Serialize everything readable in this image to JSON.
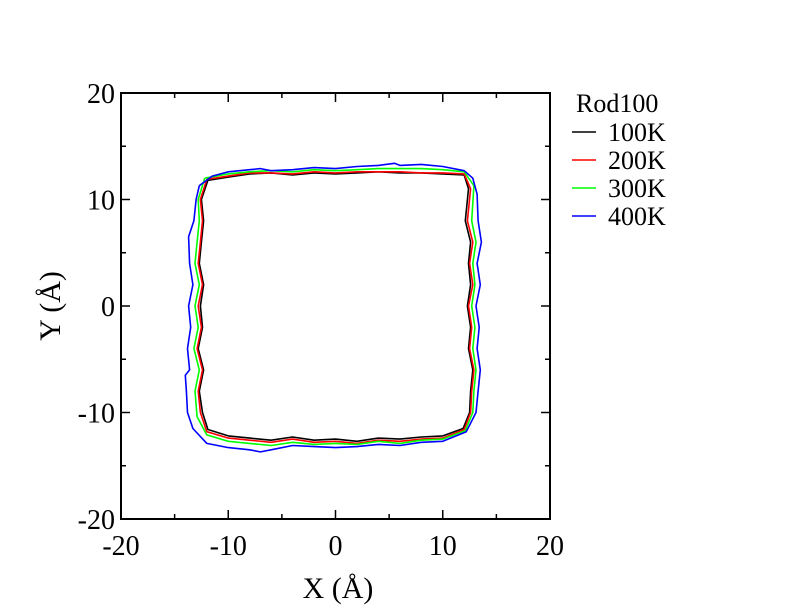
{
  "chart_data": {
    "type": "line",
    "title": "",
    "xlabel": "X (Å)",
    "ylabel": "Y (Å)",
    "xlim": [
      -20,
      20
    ],
    "ylim": [
      -20,
      20
    ],
    "xticks": [
      -20,
      -10,
      0,
      10,
      20
    ],
    "yticks": [
      -20,
      -10,
      0,
      10,
      20
    ],
    "xtick_labels": [
      "-20",
      "-10",
      "0",
      "10",
      "20"
    ],
    "ytick_labels": [
      "-20",
      "-10",
      "0",
      "10",
      "20"
    ],
    "minor_tick_step": 5,
    "grid": false,
    "legend": {
      "title": "Rod100",
      "position": "right"
    },
    "series": [
      {
        "name": "100K",
        "color": "#000000",
        "points": [
          [
            -11.9,
            11.8
          ],
          [
            -10,
            12.1
          ],
          [
            -8,
            12.4
          ],
          [
            -6,
            12.5
          ],
          [
            -4,
            12.3
          ],
          [
            -2,
            12.5
          ],
          [
            0,
            12.4
          ],
          [
            2,
            12.5
          ],
          [
            4,
            12.6
          ],
          [
            6,
            12.5
          ],
          [
            8,
            12.5
          ],
          [
            10,
            12.4
          ],
          [
            12,
            12.3
          ],
          [
            12.4,
            11
          ],
          [
            12.1,
            8
          ],
          [
            12.6,
            6
          ],
          [
            12.4,
            4
          ],
          [
            12.6,
            2
          ],
          [
            12.3,
            0
          ],
          [
            12.6,
            -2
          ],
          [
            12.4,
            -4
          ],
          [
            12.8,
            -6
          ],
          [
            12.6,
            -8
          ],
          [
            12.5,
            -10
          ],
          [
            11.9,
            -11.5
          ],
          [
            10,
            -12.2
          ],
          [
            8,
            -12.3
          ],
          [
            6,
            -12.5
          ],
          [
            4,
            -12.4
          ],
          [
            2,
            -12.7
          ],
          [
            0,
            -12.5
          ],
          [
            -2,
            -12.6
          ],
          [
            -4,
            -12.3
          ],
          [
            -6,
            -12.6
          ],
          [
            -8,
            -12.4
          ],
          [
            -10,
            -12.2
          ],
          [
            -11.9,
            -11.6
          ],
          [
            -12.4,
            -10
          ],
          [
            -12.7,
            -8
          ],
          [
            -12.3,
            -6
          ],
          [
            -12.8,
            -4
          ],
          [
            -12.4,
            -2
          ],
          [
            -12.6,
            0
          ],
          [
            -12.3,
            2
          ],
          [
            -12.7,
            4
          ],
          [
            -12.5,
            6
          ],
          [
            -12.3,
            8
          ],
          [
            -12.5,
            10
          ],
          [
            -11.9,
            11.8
          ]
        ]
      },
      {
        "name": "200K",
        "color": "#ff0000",
        "points": [
          [
            -12,
            11.9
          ],
          [
            -10,
            12.2
          ],
          [
            -8,
            12.5
          ],
          [
            -6,
            12.5
          ],
          [
            -4,
            12.4
          ],
          [
            -2,
            12.6
          ],
          [
            0,
            12.5
          ],
          [
            2,
            12.6
          ],
          [
            4,
            12.6
          ],
          [
            6,
            12.6
          ],
          [
            8,
            12.5
          ],
          [
            10,
            12.5
          ],
          [
            12,
            12.4
          ],
          [
            12.6,
            11
          ],
          [
            12.3,
            8
          ],
          [
            12.8,
            6
          ],
          [
            12.5,
            4
          ],
          [
            12.8,
            2
          ],
          [
            12.4,
            0
          ],
          [
            12.7,
            -2
          ],
          [
            12.5,
            -4
          ],
          [
            12.9,
            -6
          ],
          [
            12.7,
            -8
          ],
          [
            12.6,
            -10
          ],
          [
            12,
            -11.6
          ],
          [
            10,
            -12.4
          ],
          [
            8,
            -12.5
          ],
          [
            6,
            -12.7
          ],
          [
            4,
            -12.6
          ],
          [
            2,
            -12.9
          ],
          [
            0,
            -12.7
          ],
          [
            -2,
            -12.8
          ],
          [
            -4,
            -12.5
          ],
          [
            -6,
            -12.8
          ],
          [
            -8,
            -12.6
          ],
          [
            -10,
            -12.4
          ],
          [
            -12,
            -11.8
          ],
          [
            -12.6,
            -10
          ],
          [
            -12.8,
            -8
          ],
          [
            -12.4,
            -6
          ],
          [
            -12.9,
            -4
          ],
          [
            -12.5,
            -2
          ],
          [
            -12.8,
            0
          ],
          [
            -12.4,
            2
          ],
          [
            -12.8,
            4
          ],
          [
            -12.6,
            6
          ],
          [
            -12.4,
            8
          ],
          [
            -12.6,
            10
          ],
          [
            -12,
            11.9
          ]
        ]
      },
      {
        "name": "300K",
        "color": "#00ff00",
        "points": [
          [
            -12.2,
            12
          ],
          [
            -10,
            12.4
          ],
          [
            -8,
            12.6
          ],
          [
            -6,
            12.7
          ],
          [
            -4,
            12.6
          ],
          [
            -2,
            12.8
          ],
          [
            0,
            12.7
          ],
          [
            2,
            12.8
          ],
          [
            4,
            12.9
          ],
          [
            6,
            12.9
          ],
          [
            8,
            12.9
          ],
          [
            10,
            12.8
          ],
          [
            12,
            12.6
          ],
          [
            12.9,
            11.3
          ],
          [
            12.7,
            8
          ],
          [
            13.1,
            6
          ],
          [
            12.8,
            4
          ],
          [
            13,
            2
          ],
          [
            12.7,
            0
          ],
          [
            13,
            -2
          ],
          [
            12.8,
            -4
          ],
          [
            13.1,
            -6
          ],
          [
            12.9,
            -8
          ],
          [
            12.8,
            -10
          ],
          [
            12.1,
            -11.7
          ],
          [
            10,
            -12.5
          ],
          [
            8,
            -12.6
          ],
          [
            6,
            -12.9
          ],
          [
            4,
            -12.7
          ],
          [
            2,
            -13
          ],
          [
            0,
            -12.9
          ],
          [
            -2,
            -13
          ],
          [
            -4,
            -12.8
          ],
          [
            -6,
            -13.1
          ],
          [
            -8,
            -12.9
          ],
          [
            -10,
            -12.7
          ],
          [
            -12,
            -12.1
          ],
          [
            -12.9,
            -10.4
          ],
          [
            -13.1,
            -8
          ],
          [
            -12.7,
            -6
          ],
          [
            -13.2,
            -4
          ],
          [
            -12.8,
            -2
          ],
          [
            -13.1,
            0
          ],
          [
            -12.7,
            2
          ],
          [
            -13.1,
            4
          ],
          [
            -12.9,
            6
          ],
          [
            -12.7,
            8
          ],
          [
            -12.8,
            10
          ],
          [
            -12.2,
            12
          ]
        ]
      },
      {
        "name": "400K",
        "color": "#0000ff",
        "points": [
          [
            -12.7,
            11.3
          ],
          [
            -11.5,
            12.2
          ],
          [
            -10,
            12.6
          ],
          [
            -8,
            12.8
          ],
          [
            -7,
            12.9
          ],
          [
            -6,
            12.7
          ],
          [
            -4,
            12.8
          ],
          [
            -2,
            13
          ],
          [
            0,
            12.9
          ],
          [
            2,
            13.1
          ],
          [
            4,
            13.2
          ],
          [
            5.5,
            13.4
          ],
          [
            6,
            13.2
          ],
          [
            8,
            13.3
          ],
          [
            10,
            13.1
          ],
          [
            12,
            12.7
          ],
          [
            12.8,
            12
          ],
          [
            13.2,
            10.5
          ],
          [
            13.3,
            8
          ],
          [
            13.6,
            6
          ],
          [
            13.2,
            4
          ],
          [
            13.5,
            2
          ],
          [
            13.1,
            0
          ],
          [
            13.4,
            -2
          ],
          [
            13.2,
            -4
          ],
          [
            13.5,
            -6
          ],
          [
            13.3,
            -8
          ],
          [
            13.1,
            -10
          ],
          [
            12.2,
            -11.8
          ],
          [
            10,
            -12.7
          ],
          [
            8,
            -12.8
          ],
          [
            6,
            -13.1
          ],
          [
            4,
            -13
          ],
          [
            2,
            -13.2
          ],
          [
            0,
            -13.3
          ],
          [
            -2,
            -13.2
          ],
          [
            -4,
            -13.1
          ],
          [
            -6,
            -13.5
          ],
          [
            -7,
            -13.7
          ],
          [
            -8,
            -13.5
          ],
          [
            -10,
            -13.3
          ],
          [
            -12,
            -12.9
          ],
          [
            -13.3,
            -11.5
          ],
          [
            -13.8,
            -10
          ],
          [
            -13.9,
            -8
          ],
          [
            -14,
            -6.5
          ],
          [
            -13.6,
            -6
          ],
          [
            -13.8,
            -4
          ],
          [
            -13.5,
            -2
          ],
          [
            -13.7,
            0
          ],
          [
            -13.3,
            2
          ],
          [
            -13.6,
            4
          ],
          [
            -13.7,
            6.5
          ],
          [
            -13.2,
            8
          ],
          [
            -13,
            10
          ],
          [
            -12.7,
            11.3
          ]
        ]
      }
    ]
  }
}
